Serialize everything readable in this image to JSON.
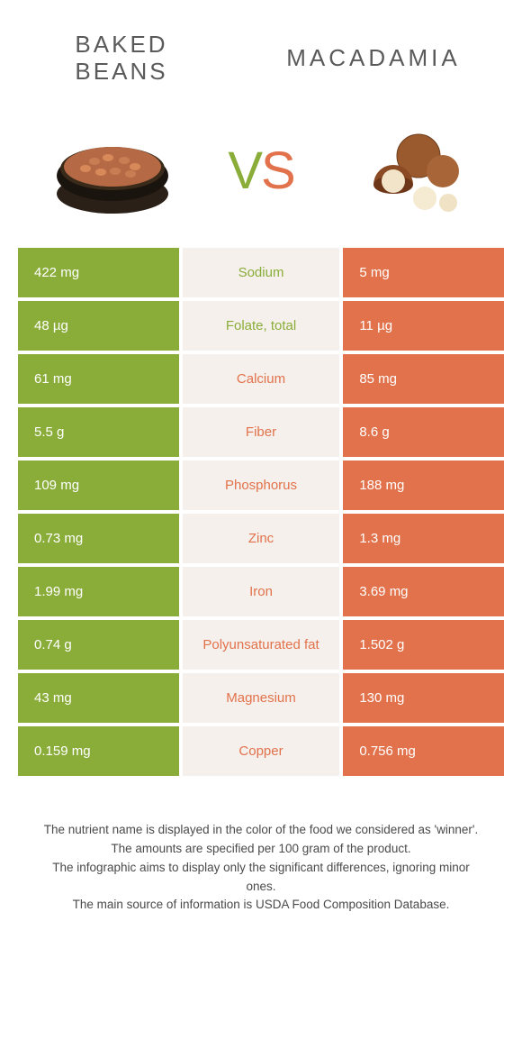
{
  "header": {
    "left_title": "Baked beans",
    "right_title": "Macadamia",
    "vs_v": "V",
    "vs_s": "S"
  },
  "colors": {
    "green": "#8aad3a",
    "orange": "#e2724b",
    "mid_bg": "#f5f0ec",
    "text_gray": "#5a5a5a"
  },
  "rows": [
    {
      "left": "422 mg",
      "label": "Sodium",
      "right": "5 mg",
      "winner": "left"
    },
    {
      "left": "48 µg",
      "label": "Folate, total",
      "right": "11 µg",
      "winner": "left"
    },
    {
      "left": "61 mg",
      "label": "Calcium",
      "right": "85 mg",
      "winner": "right"
    },
    {
      "left": "5.5 g",
      "label": "Fiber",
      "right": "8.6 g",
      "winner": "right"
    },
    {
      "left": "109 mg",
      "label": "Phosphorus",
      "right": "188 mg",
      "winner": "right"
    },
    {
      "left": "0.73 mg",
      "label": "Zinc",
      "right": "1.3 mg",
      "winner": "right"
    },
    {
      "left": "1.99 mg",
      "label": "Iron",
      "right": "3.69 mg",
      "winner": "right"
    },
    {
      "left": "0.74 g",
      "label": "Polyunsaturated fat",
      "right": "1.502 g",
      "winner": "right"
    },
    {
      "left": "43 mg",
      "label": "Magnesium",
      "right": "130 mg",
      "winner": "right"
    },
    {
      "left": "0.159 mg",
      "label": "Copper",
      "right": "0.756 mg",
      "winner": "right"
    }
  ],
  "footnote": {
    "line1": "The nutrient name is displayed in the color of the food we considered as 'winner'.",
    "line2": "The amounts are specified per 100 gram of the product.",
    "line3": "The infographic aims to display only the significant differences, ignoring minor ones.",
    "line4": "The main source of information is USDA Food Composition Database."
  }
}
